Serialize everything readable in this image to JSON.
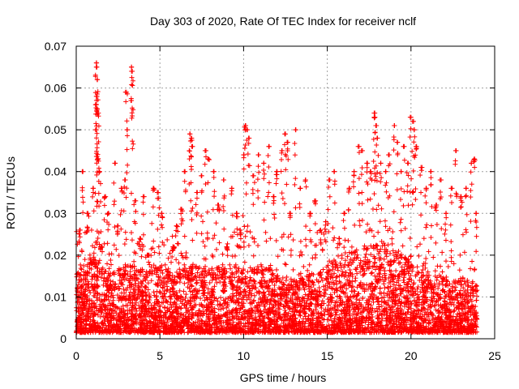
{
  "chart_data": {
    "type": "scatter",
    "title": "Day 303 of 2020, Rate Of TEC Index for receiver nclf",
    "xlabel": "GPS time / hours",
    "ylabel": "ROTI / TECUs",
    "xlim": [
      0,
      25
    ],
    "ylim": [
      0,
      0.07
    ],
    "xticks": [
      0,
      5,
      10,
      15,
      20,
      25
    ],
    "xtick_labels": [
      "0",
      "5",
      "10",
      "15",
      "20",
      "25"
    ],
    "yticks": [
      0,
      0.01,
      0.02,
      0.03,
      0.04,
      0.05,
      0.06,
      0.07
    ],
    "ytick_labels": [
      "0",
      "0.01",
      "0.02",
      "0.03",
      "0.04",
      "0.05",
      "0.06",
      "0.07"
    ],
    "grid": true,
    "marker": "plus",
    "color": "#ff0000",
    "series": [
      {
        "name": "ROTI",
        "points": [
          [
            0.1,
            0.004
          ],
          [
            0.2,
            0.026
          ],
          [
            0.3,
            0.012
          ],
          [
            0.4,
            0.04
          ],
          [
            0.5,
            0.008
          ],
          [
            0.7,
            0.03
          ],
          [
            0.9,
            0.018
          ],
          [
            1.0,
            0.036
          ],
          [
            1.1,
            0.006
          ],
          [
            1.2,
            0.065
          ],
          [
            1.2,
            0.066
          ],
          [
            1.25,
            0.062
          ],
          [
            1.2,
            0.058
          ],
          [
            1.2,
            0.056
          ],
          [
            1.25,
            0.055
          ],
          [
            1.3,
            0.054
          ],
          [
            1.2,
            0.05
          ],
          [
            1.3,
            0.043
          ],
          [
            1.4,
            0.04
          ],
          [
            1.5,
            0.022
          ],
          [
            1.7,
            0.034
          ],
          [
            1.9,
            0.03
          ],
          [
            2.0,
            0.012
          ],
          [
            2.3,
            0.042
          ],
          [
            2.5,
            0.027
          ],
          [
            2.7,
            0.036
          ],
          [
            2.9,
            0.038
          ],
          [
            3.0,
            0.059
          ],
          [
            3.05,
            0.05
          ],
          [
            3.3,
            0.065
          ],
          [
            3.35,
            0.064
          ],
          [
            3.3,
            0.057
          ],
          [
            3.5,
            0.033
          ],
          [
            3.8,
            0.024
          ],
          [
            4.0,
            0.034
          ],
          [
            4.3,
            0.02
          ],
          [
            4.6,
            0.036
          ],
          [
            4.9,
            0.035
          ],
          [
            5.1,
            0.03
          ],
          [
            5.5,
            0.015
          ],
          [
            5.8,
            0.022
          ],
          [
            6.0,
            0.027
          ],
          [
            6.3,
            0.031
          ],
          [
            6.5,
            0.04
          ],
          [
            6.8,
            0.049
          ],
          [
            6.9,
            0.048
          ],
          [
            6.9,
            0.046
          ],
          [
            7.2,
            0.035
          ],
          [
            7.5,
            0.039
          ],
          [
            7.7,
            0.045
          ],
          [
            7.9,
            0.043
          ],
          [
            8.2,
            0.04
          ],
          [
            8.5,
            0.032
          ],
          [
            8.8,
            0.038
          ],
          [
            9.0,
            0.022
          ],
          [
            9.3,
            0.036
          ],
          [
            9.6,
            0.03
          ],
          [
            9.8,
            0.026
          ],
          [
            10.0,
            0.044
          ],
          [
            10.1,
            0.051
          ],
          [
            10.2,
            0.05
          ],
          [
            10.3,
            0.048
          ],
          [
            10.6,
            0.039
          ],
          [
            10.9,
            0.044
          ],
          [
            11.2,
            0.042
          ],
          [
            11.5,
            0.046
          ],
          [
            11.8,
            0.034
          ],
          [
            12.0,
            0.04
          ],
          [
            12.3,
            0.045
          ],
          [
            12.5,
            0.049
          ],
          [
            12.6,
            0.047
          ],
          [
            12.8,
            0.03
          ],
          [
            13.1,
            0.05
          ],
          [
            13.4,
            0.036
          ],
          [
            13.7,
            0.038
          ],
          [
            14.0,
            0.03
          ],
          [
            14.3,
            0.033
          ],
          [
            14.6,
            0.026
          ],
          [
            14.9,
            0.028
          ],
          [
            15.1,
            0.038
          ],
          [
            15.4,
            0.04
          ],
          [
            15.7,
            0.024
          ],
          [
            16.0,
            0.03
          ],
          [
            16.3,
            0.036
          ],
          [
            16.6,
            0.04
          ],
          [
            16.9,
            0.046
          ],
          [
            17.1,
            0.045
          ],
          [
            17.4,
            0.042
          ],
          [
            17.6,
            0.04
          ],
          [
            17.8,
            0.054
          ],
          [
            17.85,
            0.053
          ],
          [
            17.9,
            0.051
          ],
          [
            18.0,
            0.048
          ],
          [
            18.2,
            0.042
          ],
          [
            18.5,
            0.04
          ],
          [
            18.7,
            0.044
          ],
          [
            19.0,
            0.051
          ],
          [
            19.2,
            0.047
          ],
          [
            19.4,
            0.04
          ],
          [
            19.6,
            0.046
          ],
          [
            19.8,
            0.042
          ],
          [
            20.0,
            0.053
          ],
          [
            20.1,
            0.052
          ],
          [
            20.2,
            0.05
          ],
          [
            20.3,
            0.046
          ],
          [
            20.6,
            0.041
          ],
          [
            20.9,
            0.036
          ],
          [
            21.2,
            0.04
          ],
          [
            21.5,
            0.032
          ],
          [
            21.8,
            0.038
          ],
          [
            22.1,
            0.03
          ],
          [
            22.4,
            0.036
          ],
          [
            22.7,
            0.045
          ],
          [
            23.0,
            0.034
          ],
          [
            23.3,
            0.036
          ],
          [
            23.6,
            0.042
          ],
          [
            23.8,
            0.043
          ],
          [
            23.9,
            0.03
          ]
        ],
        "density_envelope": [
          [
            0,
            0.016
          ],
          [
            1,
            0.02
          ],
          [
            2,
            0.016
          ],
          [
            3,
            0.018
          ],
          [
            4,
            0.017
          ],
          [
            5,
            0.018
          ],
          [
            6,
            0.016
          ],
          [
            7,
            0.018
          ],
          [
            8,
            0.017
          ],
          [
            9,
            0.018
          ],
          [
            10,
            0.017
          ],
          [
            11,
            0.018
          ],
          [
            12,
            0.016
          ],
          [
            13,
            0.014
          ],
          [
            14,
            0.016
          ],
          [
            15,
            0.018
          ],
          [
            16,
            0.02
          ],
          [
            17,
            0.022
          ],
          [
            18,
            0.024
          ],
          [
            19,
            0.022
          ],
          [
            20,
            0.018
          ],
          [
            21,
            0.016
          ],
          [
            22,
            0.015
          ],
          [
            23,
            0.014
          ],
          [
            24,
            0.014
          ]
        ]
      }
    ]
  }
}
